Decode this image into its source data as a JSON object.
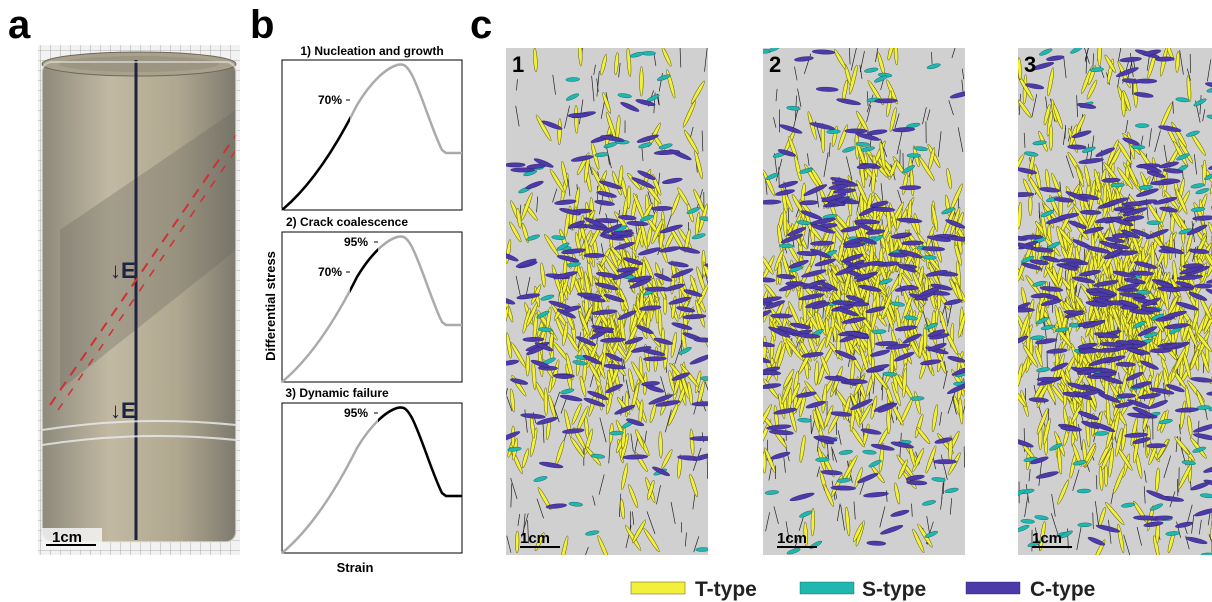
{
  "panel_labels": [
    "a",
    "b",
    "c"
  ],
  "photo": {
    "scale": "1cm"
  },
  "stress_strain": {
    "panels": [
      {
        "title": "1) Nucleation and growth",
        "labels": [
          "70%"
        ]
      },
      {
        "title": "2) Crack coalescence",
        "labels": [
          "95%",
          "70%"
        ]
      },
      {
        "title": "3) Dynamic failure",
        "labels": [
          "95%"
        ]
      }
    ],
    "y_label": "Differential stress",
    "x_label": "Strain"
  },
  "crack_maps": {
    "panels": [
      {
        "label": "1",
        "scale": "1cm"
      },
      {
        "label": "2",
        "scale": "1cm"
      },
      {
        "label": "3",
        "scale": "1cm"
      }
    ]
  },
  "legend": [
    "T-type",
    "S-type",
    "C-type"
  ]
}
